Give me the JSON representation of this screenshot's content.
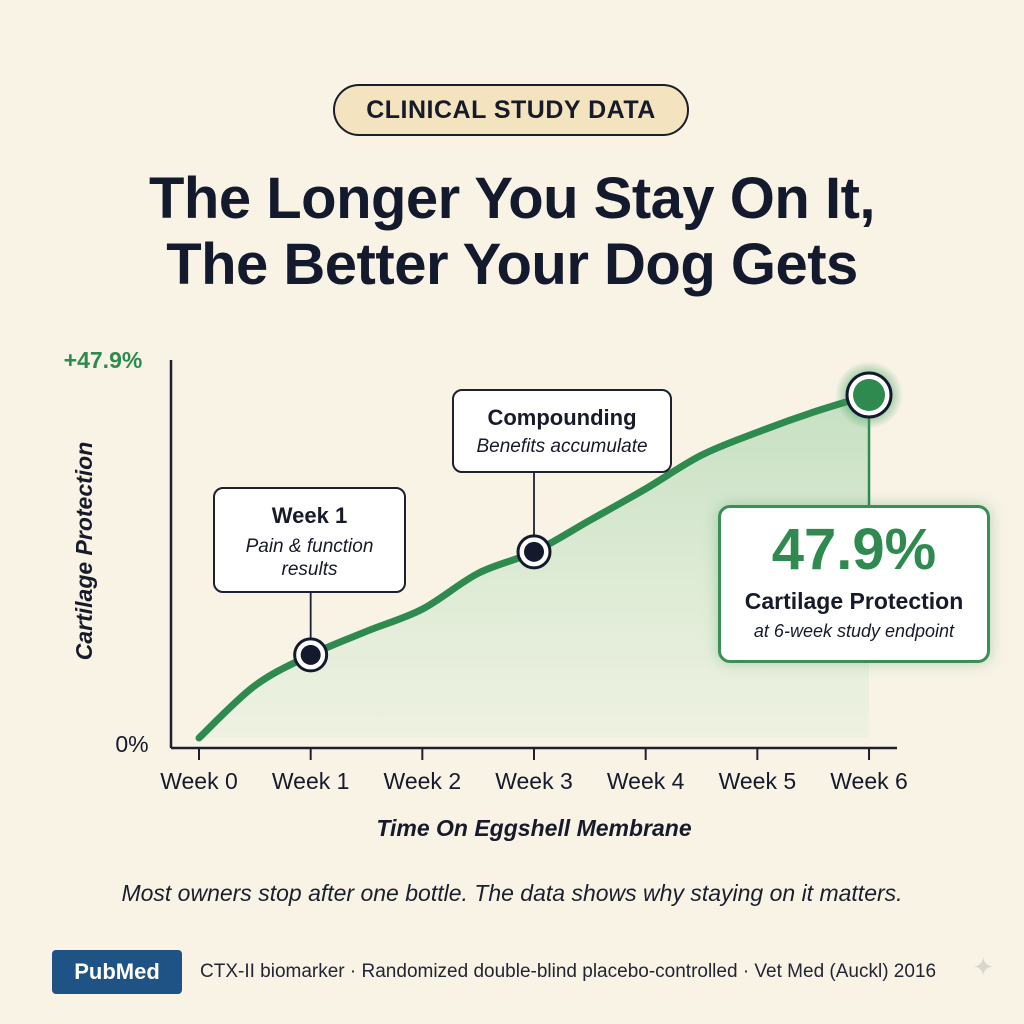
{
  "badge": "CLINICAL STUDY DATA",
  "headline": [
    "The Longer You Stay On It,",
    "The Better Your Dog Gets"
  ],
  "colors": {
    "line": "#2e8a4f",
    "fill": "#cfe5cc",
    "axis": "#1c2030",
    "dot": "#141a2e"
  },
  "chart_data": {
    "type": "area",
    "title": "",
    "xlabel": "Time On Eggshell Membrane",
    "ylabel": "Cartilage Protection",
    "x_categories": [
      "Week 0",
      "Week 1",
      "Week 2",
      "Week 3",
      "Week 4",
      "Week 5",
      "Week 6"
    ],
    "y_tick_labels": [
      "0%",
      "+47.9%"
    ],
    "ylim": [
      0,
      47.9
    ],
    "series": [
      {
        "x": [
          0,
          0.5,
          1,
          1.5,
          2,
          2.5,
          3,
          3.5,
          4,
          4.5,
          5,
          5.5,
          6
        ],
        "values": [
          0,
          7.3,
          11.6,
          14.9,
          18.0,
          23.0,
          26.0,
          30.4,
          34.8,
          39.5,
          42.7,
          45.5,
          47.9
        ]
      }
    ],
    "markers": [
      {
        "x": 1,
        "y": 11.6,
        "title": "Week 1",
        "subtitle": "Pain & function results"
      },
      {
        "x": 3,
        "y": 26.0,
        "title": "Compounding",
        "subtitle": "Benefits accumulate"
      },
      {
        "x": 6,
        "y": 47.9,
        "title": "",
        "subtitle": ""
      }
    ],
    "result": {
      "value": "47.9%",
      "label": "Cartilage Protection",
      "note": "at 6-week study endpoint"
    },
    "grid": false,
    "legend": "none"
  },
  "callouts": {
    "week1": {
      "title": "Week 1",
      "line1": "Pain & function",
      "line2": "results"
    },
    "comp": {
      "title": "Compounding",
      "line1": "Benefits accumulate"
    }
  },
  "caption": "Most owners stop after one bottle. The data shows why staying on it matters.",
  "footer": {
    "source_label": "PubMed",
    "citation": "CTX-II biomarker · Randomized double-blind placebo-controlled · Vet Med (Auckl) 2016"
  },
  "icons": {
    "corner": "sparkle-icon"
  }
}
